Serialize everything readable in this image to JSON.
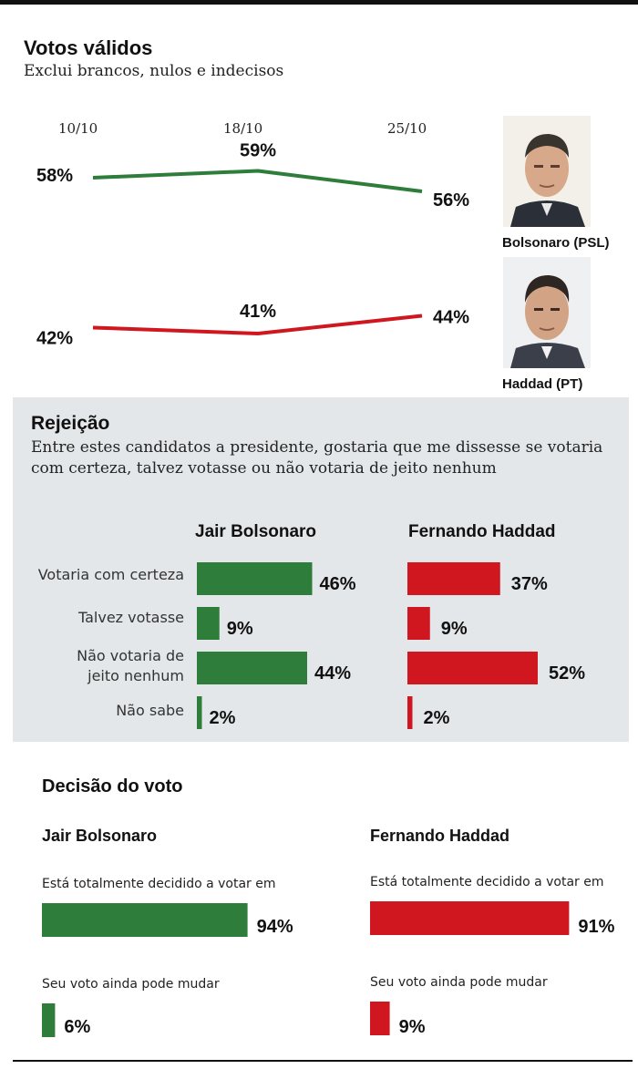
{
  "header": {
    "title": "Votos válidos",
    "subtitle": "Exclui brancos, nulos e indecisos"
  },
  "candidates": {
    "bolsonaro": {
      "label": "Bolsonaro (PSL)",
      "full_name": "Jair Bolsonaro",
      "color": "#2e7d3a"
    },
    "haddad": {
      "label": "Haddad (PT)",
      "full_name": "Fernando Haddad",
      "color": "#d0171f"
    }
  },
  "rejection": {
    "title": "Rejeição",
    "subtitle": "Entre estes candidatos a presidente, gostaria que me dissesse se votaria com certeza, talvez votasse ou não votaria de jeito nenhum",
    "rows": [
      "Votaria com certeza",
      "Talvez votasse",
      "Não votaria de jeito nenhum",
      "Não sabe"
    ]
  },
  "decision": {
    "title": "Decisão do voto",
    "labels": [
      "Está totalmente decidido a votar em",
      "Seu voto ainda pode mudar"
    ]
  },
  "chart_data": [
    {
      "type": "line",
      "x": [
        "10/10",
        "18/10",
        "25/10"
      ],
      "series": [
        {
          "name": "Bolsonaro (PSL)",
          "values": [
            58,
            59,
            56
          ],
          "color": "#2e7d3a"
        },
        {
          "name": "Haddad (PT)",
          "values": [
            42,
            41,
            44
          ],
          "color": "#d0171f"
        }
      ],
      "title": "Votos válidos",
      "subtitle": "Exclui brancos, nulos e indecisos",
      "unit": "%"
    },
    {
      "type": "bar",
      "orientation": "horizontal",
      "title": "Rejeição",
      "categories": [
        "Votaria com certeza",
        "Talvez votasse",
        "Não votaria de jeito nenhum",
        "Não sabe"
      ],
      "series": [
        {
          "name": "Jair Bolsonaro",
          "values": [
            46,
            9,
            44,
            2
          ],
          "color": "#2e7d3a"
        },
        {
          "name": "Fernando Haddad",
          "values": [
            37,
            9,
            52,
            2
          ],
          "color": "#d0171f"
        }
      ],
      "unit": "%"
    },
    {
      "type": "bar",
      "orientation": "horizontal",
      "title": "Decisão do voto",
      "categories": [
        "Está totalmente decidido a votar em",
        "Seu voto ainda pode mudar"
      ],
      "series": [
        {
          "name": "Jair Bolsonaro",
          "values": [
            94,
            6
          ],
          "color": "#2e7d3a"
        },
        {
          "name": "Fernando Haddad",
          "values": [
            91,
            9
          ],
          "color": "#d0171f"
        }
      ],
      "unit": "%"
    }
  ]
}
